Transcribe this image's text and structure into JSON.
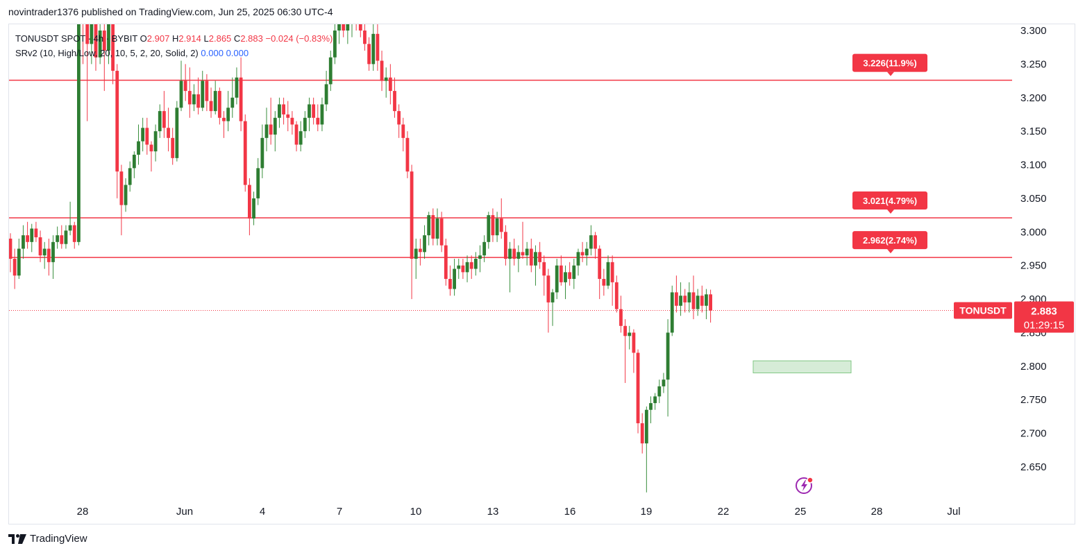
{
  "header": {
    "published_by": "novintrader1376 published on TradingView.com, Jun 25, 2025 06:30 UTC-4"
  },
  "legend": {
    "symbol_line": "TONUSDT SPOT · 4h · BYBIT",
    "open_label": "O",
    "open": "2.907",
    "high_label": "H",
    "high": "2.914",
    "low_label": "L",
    "low": "2.865",
    "close_label": "C",
    "close": "2.883",
    "change": "−0.024 (−0.83%)",
    "indicator": "SRv2 (10, High/Low, 20, 10, 5, 2, 20, Solid, 2)",
    "indicator_val1": "0.000",
    "indicator_val2": "0.000"
  },
  "footer": {
    "brand": "TradingView"
  },
  "chart_data": {
    "type": "candlestick",
    "symbol": "TONUSDT",
    "exchange": "BYBIT",
    "interval": "4h",
    "y_ticks": [
      "3.300",
      "3.250",
      "3.200",
      "3.150",
      "3.100",
      "3.050",
      "3.000",
      "2.950",
      "2.900",
      "2.850",
      "2.800",
      "2.750",
      "2.700",
      "2.650"
    ],
    "x_ticks": [
      "28",
      "Jun",
      "4",
      "7",
      "10",
      "13",
      "16",
      "19",
      "22",
      "25",
      "28",
      "Jul"
    ],
    "ylim": [
      2.605,
      3.31
    ],
    "current_price": {
      "label": "TONUSDT",
      "price": "2.883",
      "countdown": "01:29:15",
      "color": "#f23645"
    },
    "levels": [
      {
        "price": 3.226,
        "label": "3.226(11.9%)",
        "color": "#f23645"
      },
      {
        "price": 3.021,
        "label": "3.021(4.79%)",
        "color": "#f23645"
      },
      {
        "price": 2.962,
        "label": "2.962(2.74%)",
        "color": "#f23645"
      }
    ],
    "zone": {
      "from_date": "Jun 23",
      "to_date": "Jun 26",
      "low": 2.79,
      "high": 2.808,
      "color": "#c8e6c9"
    },
    "up_color": "#22ab94",
    "down_color": "#f23645",
    "candles": [
      [
        2.99,
        2.998,
        2.94,
        2.96
      ],
      [
        2.96,
        2.975,
        2.915,
        2.935
      ],
      [
        2.935,
        2.99,
        2.93,
        2.975
      ],
      [
        2.975,
        3.01,
        2.96,
        2.995
      ],
      [
        2.995,
        3.015,
        2.975,
        2.985
      ],
      [
        2.985,
        3.012,
        2.97,
        3.005
      ],
      [
        3.005,
        3.015,
        2.985,
        2.992
      ],
      [
        2.992,
        3.002,
        2.955,
        2.965
      ],
      [
        2.965,
        2.985,
        2.945,
        2.975
      ],
      [
        2.975,
        2.99,
        2.935,
        2.955
      ],
      [
        2.955,
        2.995,
        2.93,
        2.985
      ],
      [
        2.985,
        3.008,
        2.975,
        2.995
      ],
      [
        2.995,
        3.01,
        2.975,
        2.982
      ],
      [
        2.982,
        3.01,
        2.975,
        3.002
      ],
      [
        3.002,
        3.045,
        2.995,
        3.01
      ],
      [
        3.01,
        3.015,
        2.975,
        2.985
      ],
      [
        2.985,
        3.35,
        2.98,
        3.34
      ],
      [
        3.34,
        3.36,
        3.25,
        3.32
      ],
      [
        3.32,
        3.34,
        3.165,
        3.28
      ],
      [
        3.28,
        3.36,
        3.25,
        3.31
      ],
      [
        3.31,
        3.33,
        3.24,
        3.26
      ],
      [
        3.26,
        3.34,
        3.25,
        3.3
      ],
      [
        3.3,
        3.34,
        3.21,
        3.27
      ],
      [
        3.27,
        3.36,
        3.25,
        3.31
      ],
      [
        3.31,
        3.32,
        3.22,
        3.24
      ],
      [
        3.24,
        3.25,
        3.05,
        3.09
      ],
      [
        3.09,
        3.1,
        2.995,
        3.04
      ],
      [
        3.04,
        3.08,
        3.03,
        3.07
      ],
      [
        3.07,
        3.105,
        3.06,
        3.095
      ],
      [
        3.095,
        3.12,
        3.08,
        3.115
      ],
      [
        3.115,
        3.16,
        3.1,
        3.135
      ],
      [
        3.135,
        3.17,
        3.12,
        3.155
      ],
      [
        3.155,
        3.17,
        3.115,
        3.13
      ],
      [
        3.13,
        3.135,
        3.09,
        3.12
      ],
      [
        3.12,
        3.16,
        3.105,
        3.15
      ],
      [
        3.15,
        3.19,
        3.14,
        3.18
      ],
      [
        3.18,
        3.21,
        3.14,
        3.155
      ],
      [
        3.155,
        3.185,
        3.12,
        3.14
      ],
      [
        3.14,
        3.155,
        3.1,
        3.11
      ],
      [
        3.11,
        3.195,
        3.105,
        3.185
      ],
      [
        3.185,
        3.255,
        3.18,
        3.225
      ],
      [
        3.225,
        3.25,
        3.195,
        3.21
      ],
      [
        3.21,
        3.245,
        3.17,
        3.19
      ],
      [
        3.19,
        3.22,
        3.18,
        3.205
      ],
      [
        3.205,
        3.23,
        3.175,
        3.185
      ],
      [
        3.185,
        3.24,
        3.18,
        3.225
      ],
      [
        3.225,
        3.235,
        3.18,
        3.195
      ],
      [
        3.195,
        3.215,
        3.17,
        3.18
      ],
      [
        3.18,
        3.225,
        3.175,
        3.21
      ],
      [
        3.21,
        3.215,
        3.16,
        3.17
      ],
      [
        3.17,
        3.18,
        3.14,
        3.165
      ],
      [
        3.165,
        3.21,
        3.15,
        3.185
      ],
      [
        3.185,
        3.23,
        3.17,
        3.2
      ],
      [
        3.2,
        3.245,
        3.19,
        3.23
      ],
      [
        3.23,
        3.26,
        3.15,
        3.165
      ],
      [
        3.165,
        3.175,
        3.06,
        3.07
      ],
      [
        3.07,
        3.08,
        2.995,
        3.02
      ],
      [
        3.02,
        3.06,
        3.01,
        3.05
      ],
      [
        3.05,
        3.11,
        3.04,
        3.095
      ],
      [
        3.095,
        3.16,
        3.08,
        3.14
      ],
      [
        3.14,
        3.185,
        3.12,
        3.16
      ],
      [
        3.16,
        3.2,
        3.13,
        3.145
      ],
      [
        3.145,
        3.18,
        3.12,
        3.17
      ],
      [
        3.17,
        3.2,
        3.155,
        3.19
      ],
      [
        3.19,
        3.2,
        3.16,
        3.175
      ],
      [
        3.175,
        3.195,
        3.15,
        3.17
      ],
      [
        3.17,
        3.18,
        3.145,
        3.16
      ],
      [
        3.16,
        3.165,
        3.12,
        3.13
      ],
      [
        3.13,
        3.165,
        3.12,
        3.15
      ],
      [
        3.15,
        3.18,
        3.14,
        3.17
      ],
      [
        3.17,
        3.2,
        3.15,
        3.19
      ],
      [
        3.19,
        3.2,
        3.16,
        3.17
      ],
      [
        3.17,
        3.19,
        3.15,
        3.16
      ],
      [
        3.16,
        3.2,
        3.15,
        3.19
      ],
      [
        3.19,
        3.24,
        3.18,
        3.22
      ],
      [
        3.22,
        3.27,
        3.21,
        3.26
      ],
      [
        3.26,
        3.31,
        3.25,
        3.3
      ],
      [
        3.3,
        3.345,
        3.28,
        3.32
      ],
      [
        3.32,
        3.34,
        3.29,
        3.3
      ],
      [
        3.3,
        3.33,
        3.28,
        3.31
      ],
      [
        3.31,
        3.34,
        3.29,
        3.32
      ],
      [
        3.32,
        3.34,
        3.3,
        3.31
      ],
      [
        3.31,
        3.33,
        3.29,
        3.3
      ],
      [
        3.3,
        3.32,
        3.27,
        3.28
      ],
      [
        3.28,
        3.29,
        3.24,
        3.25
      ],
      [
        3.25,
        3.31,
        3.24,
        3.295
      ],
      [
        3.295,
        3.31,
        3.24,
        3.255
      ],
      [
        3.255,
        3.27,
        3.21,
        3.225
      ],
      [
        3.225,
        3.245,
        3.2,
        3.23
      ],
      [
        3.23,
        3.25,
        3.19,
        3.21
      ],
      [
        3.21,
        3.23,
        3.17,
        3.18
      ],
      [
        3.18,
        3.19,
        3.14,
        3.16
      ],
      [
        3.16,
        3.17,
        3.12,
        3.14
      ],
      [
        3.14,
        3.15,
        3.08,
        3.09
      ],
      [
        3.09,
        3.1,
        2.9,
        2.96
      ],
      [
        2.96,
        2.99,
        2.93,
        2.975
      ],
      [
        2.975,
        2.99,
        2.95,
        2.97
      ],
      [
        2.97,
        3.01,
        2.96,
        2.995
      ],
      [
        2.995,
        3.03,
        2.98,
        3.025
      ],
      [
        3.025,
        3.035,
        2.98,
        2.99
      ],
      [
        2.99,
        3.035,
        2.98,
        3.02
      ],
      [
        3.02,
        3.03,
        2.97,
        2.98
      ],
      [
        2.98,
        2.99,
        2.92,
        2.93
      ],
      [
        2.93,
        2.95,
        2.905,
        2.915
      ],
      [
        2.915,
        2.96,
        2.905,
        2.945
      ],
      [
        2.945,
        2.96,
        2.93,
        2.95
      ],
      [
        2.95,
        2.96,
        2.93,
        2.94
      ],
      [
        2.94,
        2.965,
        2.925,
        2.955
      ],
      [
        2.955,
        2.965,
        2.93,
        2.945
      ],
      [
        2.945,
        2.97,
        2.935,
        2.96
      ],
      [
        2.96,
        2.98,
        2.94,
        2.965
      ],
      [
        2.965,
        2.995,
        2.955,
        2.985
      ],
      [
        2.985,
        3.03,
        2.975,
        3.025
      ],
      [
        3.025,
        3.035,
        2.985,
        2.995
      ],
      [
        2.995,
        3.03,
        2.985,
        3.02
      ],
      [
        3.02,
        3.05,
        2.99,
        3.0
      ],
      [
        3.0,
        3.01,
        2.95,
        2.96
      ],
      [
        2.96,
        2.985,
        2.91,
        2.975
      ],
      [
        2.975,
        2.99,
        2.95,
        2.96
      ],
      [
        2.96,
        2.98,
        2.94,
        2.97
      ],
      [
        2.97,
        3.015,
        2.96,
        2.965
      ],
      [
        2.965,
        2.985,
        2.95,
        2.975
      ],
      [
        2.975,
        2.99,
        2.94,
        2.95
      ],
      [
        2.95,
        2.98,
        2.92,
        2.97
      ],
      [
        2.97,
        2.985,
        2.945,
        2.955
      ],
      [
        2.955,
        2.965,
        2.905,
        2.935
      ],
      [
        2.935,
        2.945,
        2.85,
        2.895
      ],
      [
        2.895,
        2.915,
        2.86,
        2.91
      ],
      [
        2.91,
        2.96,
        2.9,
        2.95
      ],
      [
        2.95,
        2.965,
        2.92,
        2.925
      ],
      [
        2.925,
        2.95,
        2.9,
        2.94
      ],
      [
        2.94,
        2.955,
        2.92,
        2.93
      ],
      [
        2.93,
        2.96,
        2.915,
        2.95
      ],
      [
        2.95,
        2.975,
        2.935,
        2.97
      ],
      [
        2.97,
        2.985,
        2.955,
        2.965
      ],
      [
        2.965,
        2.985,
        2.95,
        2.975
      ],
      [
        2.975,
        3.01,
        2.965,
        2.995
      ],
      [
        2.995,
        3.0,
        2.96,
        2.975
      ],
      [
        2.975,
        2.98,
        2.9,
        2.93
      ],
      [
        2.93,
        2.945,
        2.905,
        2.92
      ],
      [
        2.92,
        2.965,
        2.915,
        2.955
      ],
      [
        2.955,
        2.965,
        2.89,
        2.925
      ],
      [
        2.925,
        2.935,
        2.88,
        2.885
      ],
      [
        2.885,
        2.905,
        2.85,
        2.86
      ],
      [
        2.86,
        2.87,
        2.775,
        2.845
      ],
      [
        2.845,
        2.86,
        2.825,
        2.85
      ],
      [
        2.85,
        2.855,
        2.79,
        2.82
      ],
      [
        2.82,
        2.825,
        2.7,
        2.715
      ],
      [
        2.715,
        2.73,
        2.67,
        2.685
      ],
      [
        2.685,
        2.74,
        2.612,
        2.735
      ],
      [
        2.735,
        2.755,
        2.715,
        2.745
      ],
      [
        2.745,
        2.76,
        2.735,
        2.755
      ],
      [
        2.755,
        2.78,
        2.745,
        2.77
      ],
      [
        2.77,
        2.79,
        2.76,
        2.78
      ],
      [
        2.78,
        2.87,
        2.725,
        2.85
      ],
      [
        2.85,
        2.92,
        2.845,
        2.91
      ],
      [
        2.91,
        2.935,
        2.88,
        2.89
      ],
      [
        2.89,
        2.925,
        2.875,
        2.905
      ],
      [
        2.905,
        2.915,
        2.88,
        2.895
      ],
      [
        2.895,
        2.925,
        2.88,
        2.91
      ],
      [
        2.91,
        2.935,
        2.87,
        2.885
      ],
      [
        2.885,
        2.915,
        2.875,
        2.905
      ],
      [
        2.905,
        2.92,
        2.88,
        2.89
      ],
      [
        2.89,
        2.915,
        2.87,
        2.907
      ],
      [
        2.907,
        2.914,
        2.865,
        2.883
      ]
    ]
  }
}
